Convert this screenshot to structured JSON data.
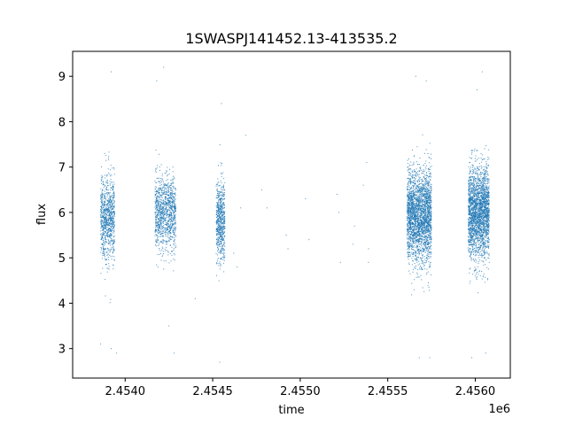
{
  "chart_data": {
    "type": "scatter",
    "title": "1SWASPJ141452.13-413535.2",
    "xlabel": "time",
    "ylabel": "flux",
    "x_offset_label": "1e6",
    "xlim": [
      2.4537,
      2.4562
    ],
    "ylim": [
      2.35,
      9.55
    ],
    "x_ticks": [
      2.454,
      2.4545,
      2.455,
      2.4555,
      2.456
    ],
    "x_tick_labels": [
      "2.4540",
      "2.4545",
      "2.4550",
      "2.4555",
      "2.4560"
    ],
    "y_ticks": [
      3,
      4,
      5,
      6,
      7,
      8,
      9
    ],
    "y_tick_labels": [
      "3",
      "4",
      "5",
      "6",
      "7",
      "8",
      "9"
    ],
    "grid": false,
    "legend": "none",
    "marker_color": "#1f77b4",
    "series": [
      {
        "clusters": [
          {
            "x_range": [
              2.45386,
              2.45394
            ],
            "y_center": 5.9,
            "y_spread": 0.45,
            "count": 900,
            "x_center": 2.4539
          },
          {
            "x_range": [
              2.45417,
              2.45429
            ],
            "y_center": 6.0,
            "y_spread": 0.4,
            "count": 1100,
            "x_center": 2.45423
          },
          {
            "x_range": [
              2.45452,
              2.45457
            ],
            "y_center": 5.8,
            "y_spread": 0.45,
            "count": 650,
            "x_center": 2.45455
          },
          {
            "x_range": [
              2.45561,
              2.45575
            ],
            "y_center": 5.9,
            "y_spread": 0.5,
            "count": 2600,
            "x_center": 2.45568
          },
          {
            "x_range": [
              2.45596,
              2.45608
            ],
            "y_center": 6.0,
            "y_spread": 0.5,
            "count": 2400,
            "x_center": 2.45602
          }
        ],
        "scattered_points": [
          {
            "x": 2.45462,
            "y": 5.1
          },
          {
            "x": 2.45464,
            "y": 4.8
          },
          {
            "x": 2.45466,
            "y": 6.1
          },
          {
            "x": 2.45478,
            "y": 6.5
          },
          {
            "x": 2.45481,
            "y": 6.1
          },
          {
            "x": 2.45492,
            "y": 5.5
          },
          {
            "x": 2.45493,
            "y": 5.2
          },
          {
            "x": 2.45503,
            "y": 6.3
          },
          {
            "x": 2.45505,
            "y": 5.4
          },
          {
            "x": 2.45521,
            "y": 6.4
          },
          {
            "x": 2.45522,
            "y": 6.0
          },
          {
            "x": 2.45523,
            "y": 4.9
          },
          {
            "x": 2.4553,
            "y": 5.3
          },
          {
            "x": 2.45531,
            "y": 5.7
          },
          {
            "x": 2.45536,
            "y": 6.6
          },
          {
            "x": 2.45538,
            "y": 7.1
          },
          {
            "x": 2.45539,
            "y": 5.2
          },
          {
            "x": 2.45539,
            "y": 4.9
          },
          {
            "x": 2.45469,
            "y": 7.7
          },
          {
            "x": 2.4544,
            "y": 4.1
          }
        ],
        "outliers": [
          {
            "x": 2.45392,
            "y": 9.1
          },
          {
            "x": 2.45392,
            "y": 3.0
          },
          {
            "x": 2.45395,
            "y": 2.9
          },
          {
            "x": 2.45422,
            "y": 9.2
          },
          {
            "x": 2.45418,
            "y": 8.9
          },
          {
            "x": 2.45425,
            "y": 3.5
          },
          {
            "x": 2.45428,
            "y": 2.9
          },
          {
            "x": 2.45455,
            "y": 8.4
          },
          {
            "x": 2.45454,
            "y": 2.7
          },
          {
            "x": 2.45566,
            "y": 9.0
          },
          {
            "x": 2.45572,
            "y": 8.9
          },
          {
            "x": 2.45568,
            "y": 2.8
          },
          {
            "x": 2.45574,
            "y": 2.8
          },
          {
            "x": 2.45604,
            "y": 9.1
          },
          {
            "x": 2.45601,
            "y": 8.7
          },
          {
            "x": 2.45598,
            "y": 2.8
          },
          {
            "x": 2.45606,
            "y": 2.9
          },
          {
            "x": 2.45386,
            "y": 3.1
          }
        ]
      }
    ]
  }
}
